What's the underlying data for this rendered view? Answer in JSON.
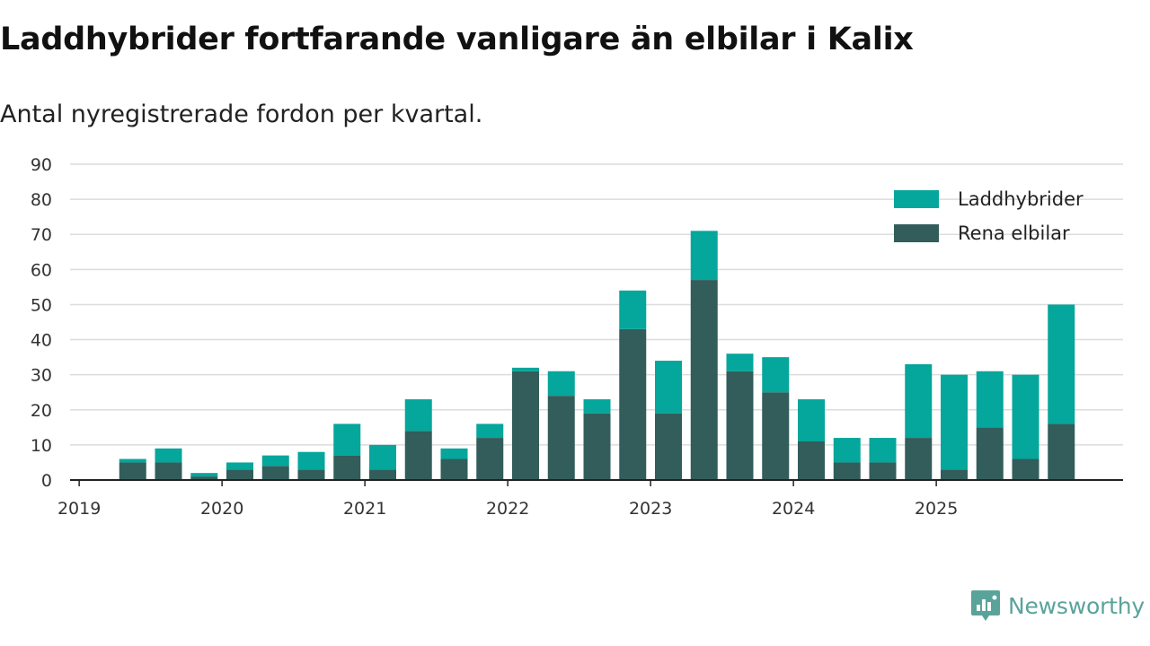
{
  "title": "Laddhybrider fortfarande vanligare än elbilar i Kalix",
  "subtitle": "Antal nyregistrerade fordon per kvartal.",
  "brand": {
    "name": "Newsworthy",
    "icon": "newsworthy-logo-icon"
  },
  "colors": {
    "laddhybrider": "#05a69b",
    "rena_elbilar": "#325d5a",
    "grid": "#dcdcdc",
    "axis": "#222222",
    "brand": "#5aa39b"
  },
  "chart_data": {
    "type": "bar",
    "stacked": true,
    "title": "Laddhybrider fortfarande vanligare än elbilar i Kalix",
    "subtitle": "Antal nyregistrerade fordon per kvartal.",
    "xlabel": "",
    "ylabel": "",
    "ylim": [
      0,
      90
    ],
    "yticks": [
      0,
      10,
      20,
      30,
      40,
      50,
      60,
      70,
      80,
      90
    ],
    "xtick_labels": [
      "2019",
      "2020",
      "2021",
      "2022",
      "2023",
      "2024",
      "2025"
    ],
    "grid": true,
    "legend_position": "top-right",
    "categories": [
      "2019 Q1",
      "2019 Q2",
      "2019 Q3",
      "2019 Q4",
      "2020 Q1",
      "2020 Q2",
      "2020 Q3",
      "2020 Q4",
      "2021 Q1",
      "2021 Q2",
      "2021 Q3",
      "2021 Q4",
      "2022 Q1",
      "2022 Q2",
      "2022 Q3",
      "2022 Q4",
      "2023 Q1",
      "2023 Q2",
      "2023 Q3",
      "2023 Q4",
      "2024 Q1",
      "2024 Q2",
      "2024 Q3",
      "2024 Q4",
      "2025 Q1",
      "2025 Q2",
      "2025 Q3",
      "2025 Q4"
    ],
    "series": [
      {
        "name": "Rena elbilar",
        "color": "#325d5a",
        "values": [
          0,
          5,
          5,
          1,
          3,
          4,
          3,
          7,
          3,
          14,
          6,
          12,
          31,
          24,
          19,
          43,
          19,
          57,
          31,
          25,
          11,
          5,
          5,
          12,
          3,
          15,
          6,
          16
        ]
      },
      {
        "name": "Laddhybrider",
        "color": "#05a69b",
        "values": [
          0,
          1,
          4,
          1,
          2,
          3,
          5,
          9,
          7,
          9,
          3,
          4,
          1,
          7,
          4,
          11,
          15,
          14,
          5,
          10,
          12,
          7,
          7,
          21,
          27,
          16,
          24,
          34
        ]
      }
    ],
    "legend": [
      "Laddhybrider",
      "Rena elbilar"
    ]
  }
}
